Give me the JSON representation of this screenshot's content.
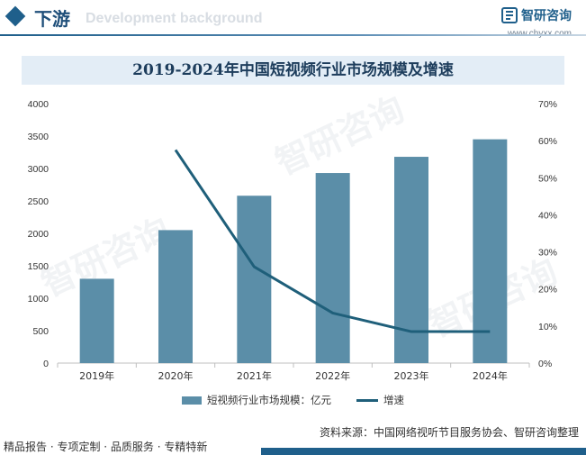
{
  "header": {
    "title": "下游",
    "bg_text": "Development background",
    "brand_name": "智研咨询",
    "brand_url": "www.chyxx.com"
  },
  "chart_data": {
    "type": "bar",
    "title": "2019-2024年中国短视频行业市场规模及增速",
    "categories": [
      "2019年",
      "2020年",
      "2021年",
      "2022年",
      "2023年",
      "2024年"
    ],
    "series": [
      {
        "name": "短视频行业市场规模：亿元",
        "type": "bar",
        "axis": "left",
        "color": "#5b8ea8",
        "values": [
          1300,
          2050,
          2580,
          2930,
          3180,
          3450
        ]
      },
      {
        "name": "增速",
        "type": "line",
        "axis": "right",
        "color": "#1f5f7a",
        "values": [
          null,
          57.5,
          26,
          13.5,
          8.5,
          8.5
        ]
      }
    ],
    "y_left": {
      "min": 0,
      "max": 4000,
      "ticks": [
        "0",
        "500",
        "1000",
        "1500",
        "2000",
        "2500",
        "3000",
        "3500",
        "4000"
      ]
    },
    "y_right": {
      "min": 0,
      "max": 70,
      "ticks": [
        "0%",
        "10%",
        "20%",
        "30%",
        "40%",
        "50%",
        "60%",
        "70%"
      ]
    },
    "legend_position": "bottom",
    "grid": false
  },
  "source": "资料来源：中国网络视听节目服务协会、智研咨询整理",
  "footer": "精品报告 · 专项定制 · 品质服务 · 专精特新",
  "watermark": "智研咨询"
}
